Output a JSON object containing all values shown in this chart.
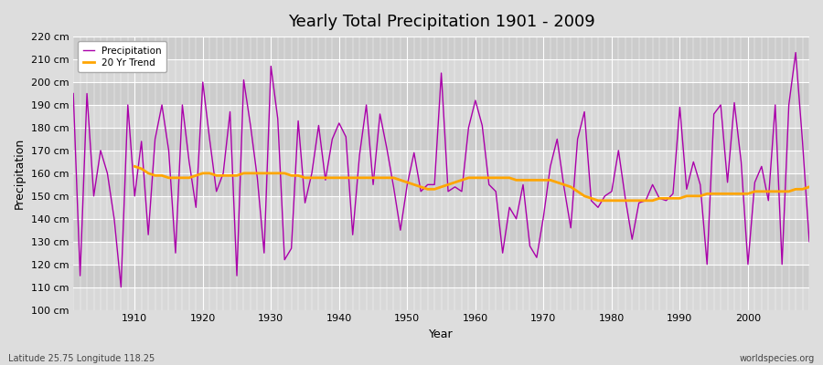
{
  "title": "Yearly Total Precipitation 1901 - 2009",
  "xlabel": "Year",
  "ylabel": "Precipitation",
  "footnote_left": "Latitude 25.75 Longitude 118.25",
  "footnote_right": "worldspecies.org",
  "ylim": [
    100,
    220
  ],
  "yticks": [
    100,
    110,
    120,
    130,
    140,
    150,
    160,
    170,
    180,
    190,
    200,
    210,
    220
  ],
  "ytick_labels": [
    "100 cm",
    "110 cm",
    "120 cm",
    "130 cm",
    "140 cm",
    "150 cm",
    "160 cm",
    "170 cm",
    "180 cm",
    "190 cm",
    "200 cm",
    "210 cm",
    "220 cm"
  ],
  "xlim": [
    1901,
    2009
  ],
  "xticks": [
    1910,
    1920,
    1930,
    1940,
    1950,
    1960,
    1970,
    1980,
    1990,
    2000
  ],
  "fig_bg_color": "#dddddd",
  "plot_bg_color": "#cccccc",
  "band_color_light": "#d8d8d8",
  "band_color_dark": "#c8c8c8",
  "grid_line_color": "#bbbbbb",
  "precip_color": "#aa00aa",
  "trend_color": "#ffa500",
  "legend_precip": "Precipitation",
  "legend_trend": "20 Yr Trend",
  "years": [
    1901,
    1902,
    1903,
    1904,
    1905,
    1906,
    1907,
    1908,
    1909,
    1910,
    1911,
    1912,
    1913,
    1914,
    1915,
    1916,
    1917,
    1918,
    1919,
    1920,
    1921,
    1922,
    1923,
    1924,
    1925,
    1926,
    1927,
    1928,
    1929,
    1930,
    1931,
    1932,
    1933,
    1934,
    1935,
    1936,
    1937,
    1938,
    1939,
    1940,
    1941,
    1942,
    1943,
    1944,
    1945,
    1946,
    1947,
    1948,
    1949,
    1950,
    1951,
    1952,
    1953,
    1954,
    1955,
    1956,
    1957,
    1958,
    1959,
    1960,
    1961,
    1962,
    1963,
    1964,
    1965,
    1966,
    1967,
    1968,
    1969,
    1970,
    1971,
    1972,
    1973,
    1974,
    1975,
    1976,
    1977,
    1978,
    1979,
    1980,
    1981,
    1982,
    1983,
    1984,
    1985,
    1986,
    1987,
    1988,
    1989,
    1990,
    1991,
    1992,
    1993,
    1994,
    1995,
    1996,
    1997,
    1998,
    1999,
    2000,
    2001,
    2002,
    2003,
    2004,
    2005,
    2006,
    2007,
    2008,
    2009
  ],
  "precipitation": [
    195,
    115,
    195,
    150,
    170,
    160,
    140,
    110,
    190,
    150,
    174,
    133,
    175,
    190,
    170,
    125,
    190,
    165,
    145,
    200,
    175,
    152,
    160,
    187,
    115,
    201,
    181,
    158,
    125,
    207,
    184,
    122,
    127,
    183,
    147,
    160,
    181,
    157,
    175,
    182,
    176,
    133,
    168,
    190,
    155,
    186,
    171,
    154,
    135,
    155,
    169,
    152,
    155,
    155,
    204,
    152,
    154,
    152,
    180,
    192,
    181,
    155,
    152,
    125,
    145,
    140,
    155,
    128,
    123,
    141,
    163,
    175,
    154,
    136,
    175,
    187,
    148,
    145,
    150,
    152,
    170,
    149,
    131,
    147,
    148,
    155,
    149,
    148,
    151,
    189,
    153,
    165,
    155,
    120,
    186,
    190,
    156,
    191,
    165,
    120,
    156,
    163,
    148,
    190,
    120,
    190,
    213,
    174,
    130
  ],
  "trend": [
    null,
    null,
    null,
    null,
    null,
    null,
    null,
    null,
    null,
    163,
    162,
    160,
    159,
    159,
    158,
    158,
    158,
    158,
    159,
    160,
    160,
    159,
    159,
    159,
    159,
    160,
    160,
    160,
    160,
    160,
    160,
    160,
    159,
    159,
    158,
    158,
    158,
    158,
    158,
    158,
    158,
    158,
    158,
    158,
    158,
    158,
    158,
    158,
    157,
    156,
    155,
    154,
    153,
    153,
    154,
    155,
    156,
    157,
    158,
    158,
    158,
    158,
    158,
    158,
    158,
    157,
    157,
    157,
    157,
    157,
    157,
    156,
    155,
    154,
    152,
    150,
    149,
    148,
    148,
    148,
    148,
    148,
    148,
    148,
    148,
    148,
    149,
    149,
    149,
    149,
    150,
    150,
    150,
    151,
    151,
    151,
    151,
    151,
    151,
    151,
    152,
    152,
    152,
    152,
    152,
    152,
    153,
    153,
    154
  ]
}
